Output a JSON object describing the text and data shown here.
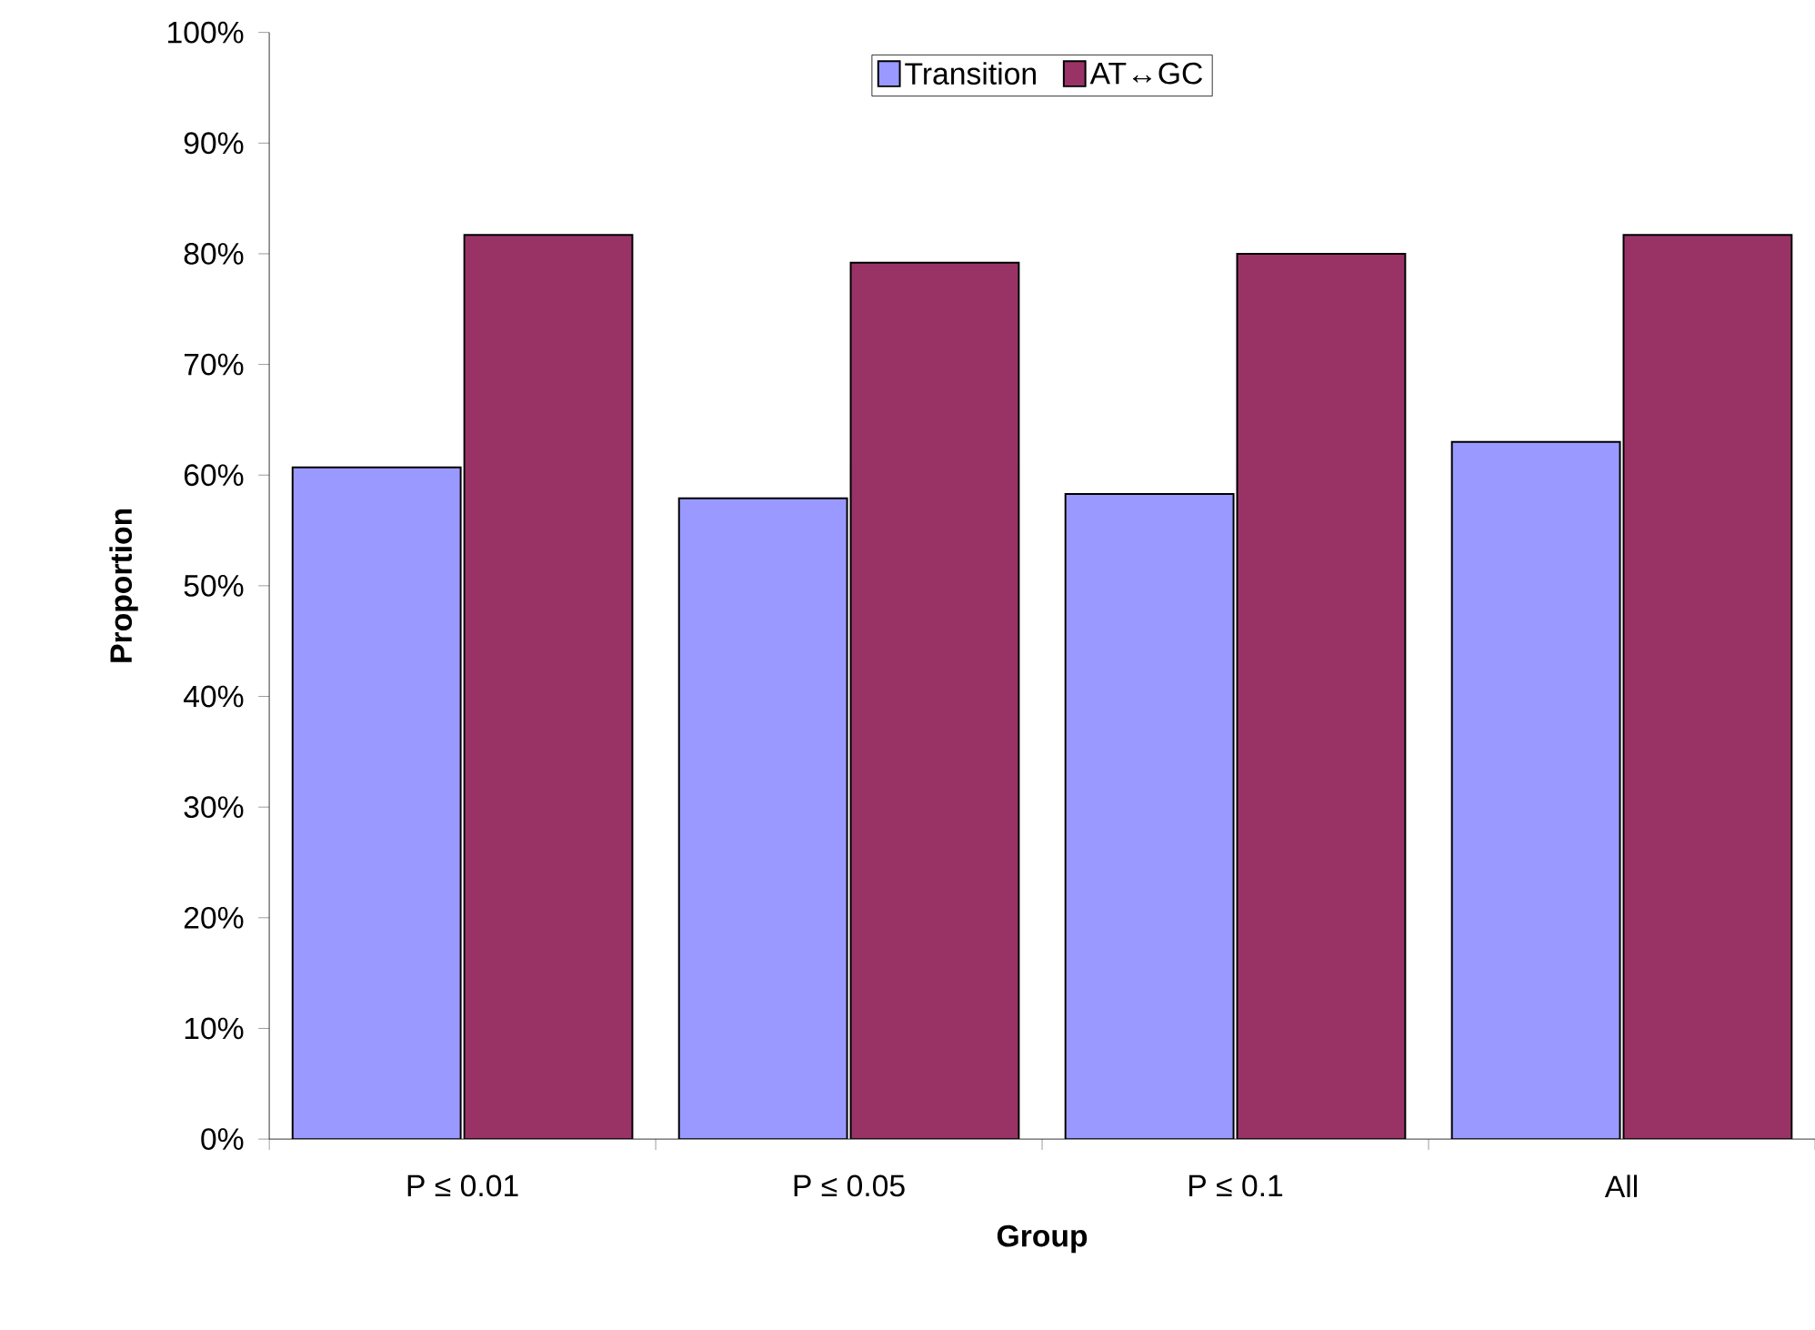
{
  "chart_data": {
    "type": "bar",
    "xlabel": "Group",
    "ylabel": "Proportion",
    "categories": [
      "P ≤ 0.01",
      "P ≤ 0.05",
      "P ≤ 0.1",
      "All"
    ],
    "series": [
      {
        "name": "Transition",
        "color": "#9999ff",
        "values": [
          60.7,
          57.9,
          58.3,
          63.0
        ]
      },
      {
        "name": "AT↔GC",
        "color": "#993366",
        "values": [
          81.7,
          79.2,
          80.0,
          81.7
        ]
      }
    ],
    "ylim": [
      0,
      100
    ],
    "yticks": [
      {
        "value": 0,
        "label": "0%"
      },
      {
        "value": 10,
        "label": "10%"
      },
      {
        "value": 20,
        "label": "20%"
      },
      {
        "value": 30,
        "label": "30%"
      },
      {
        "value": 40,
        "label": "40%"
      },
      {
        "value": 50,
        "label": "50%"
      },
      {
        "value": 60,
        "label": "60%"
      },
      {
        "value": 70,
        "label": "70%"
      },
      {
        "value": 80,
        "label": "80%"
      },
      {
        "value": 90,
        "label": "90%"
      },
      {
        "value": 100,
        "label": "100%"
      }
    ],
    "grid": false,
    "legend": "top"
  }
}
